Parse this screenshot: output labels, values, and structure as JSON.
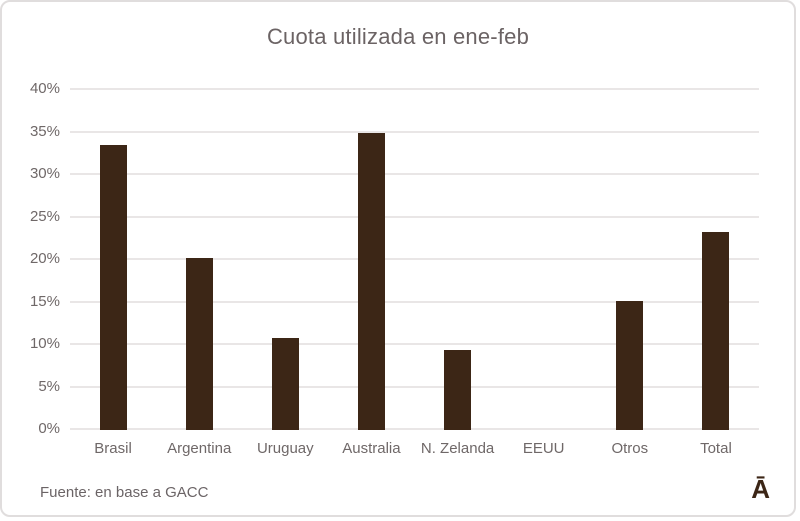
{
  "title": "Cuota utilizada en ene-feb",
  "footer": {
    "source_text": "Fuente: en base a GACC"
  },
  "logo": {
    "glyph": "Ā"
  },
  "colors": {
    "bar": "#3c2616",
    "gridline": "#e9e6e6",
    "frame_border": "#e0dddd",
    "title_text": "#6b6364",
    "axis_text": "#6f6868",
    "footer_text": "#6b6466",
    "logo_text": "#3c2616",
    "background": "#ffffff"
  },
  "chart_data": {
    "type": "bar",
    "title": "Cuota utilizada en ene-feb",
    "categories": [
      "Brasil",
      "Argentina",
      "Uruguay",
      "Australia",
      "N. Zelanda",
      "EEUU",
      "Otros",
      "Total"
    ],
    "values": [
      33.5,
      20.2,
      10.8,
      35.0,
      9.4,
      0.0,
      15.2,
      23.3
    ],
    "xlabel": "",
    "ylabel": "",
    "ylim": [
      0,
      40
    ],
    "ytick_step": 5,
    "ytick_labels": [
      "0%",
      "5%",
      "10%",
      "15%",
      "20%",
      "25%",
      "30%",
      "35%",
      "40%"
    ],
    "grid": "horizontal",
    "legend": "none",
    "annotation": "Fuente: en base a GACC"
  }
}
